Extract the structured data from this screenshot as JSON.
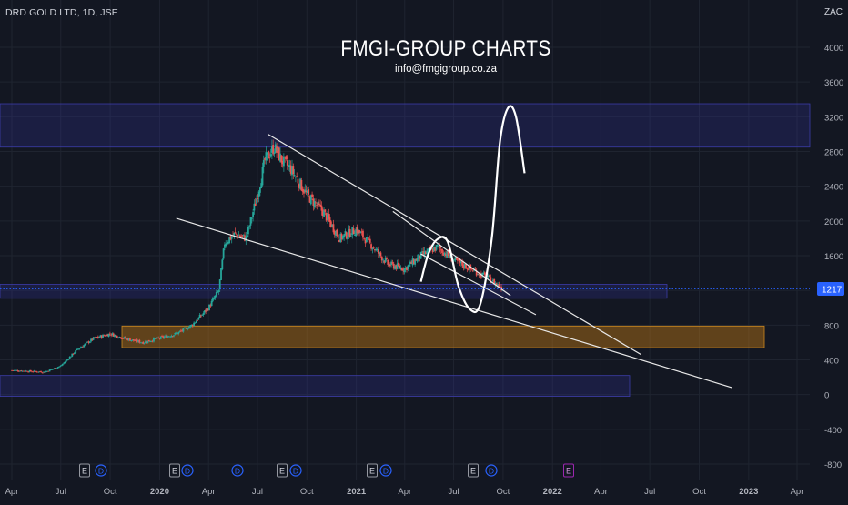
{
  "header": {
    "symbol": "DRD GOLD LTD, 1D, JSE",
    "currency": "ZAC"
  },
  "watermark": {
    "title": "FMGI-GROUP CHARTS",
    "subtitle": "info@fmgigroup.co.za"
  },
  "colors": {
    "background": "#131722",
    "candle_up": "#26a69a",
    "candle_down": "#ef5350",
    "trendline": "#e8e8e8",
    "zone_blue": "#3a3a9a",
    "zone_orange": "#c07a18",
    "price_tag": "#2962ff",
    "grid": "#1f2430"
  },
  "chart_data": {
    "type": "candlestick",
    "x_ticks": [
      "Apr",
      "Jul",
      "Oct",
      "2020",
      "Apr",
      "Jul",
      "Oct",
      "2021",
      "Apr",
      "Jul",
      "Oct",
      "2022",
      "Apr",
      "Jul",
      "Oct",
      "2023",
      "Apr"
    ],
    "x_range": [
      "2019-04",
      "2023-04"
    ],
    "y_ticks": [
      4000,
      3600,
      3200,
      2800,
      2400,
      2000,
      1600,
      1200,
      800,
      400,
      0,
      -400,
      -800
    ],
    "y_range": [
      -1000,
      4500
    ],
    "last_price": "1217",
    "events": [
      "E",
      "D",
      "E",
      "D",
      "D",
      "E",
      "D",
      "E",
      "D",
      "E",
      "D",
      "E"
    ],
    "close_series": [
      [
        "2019-04-01",
        280
      ],
      [
        "2019-05-01",
        270
      ],
      [
        "2019-06-01",
        260
      ],
      [
        "2019-07-01",
        330
      ],
      [
        "2019-08-01",
        520
      ],
      [
        "2019-09-01",
        650
      ],
      [
        "2019-10-01",
        700
      ],
      [
        "2019-11-01",
        640
      ],
      [
        "2019-12-01",
        600
      ],
      [
        "2020-01-01",
        650
      ],
      [
        "2020-02-01",
        700
      ],
      [
        "2020-03-01",
        800
      ],
      [
        "2020-04-01",
        1000
      ],
      [
        "2020-04-20",
        1200
      ],
      [
        "2020-05-01",
        1750
      ],
      [
        "2020-05-20",
        1850
      ],
      [
        "2020-06-10",
        1800
      ],
      [
        "2020-07-01",
        2300
      ],
      [
        "2020-07-15",
        2700
      ],
      [
        "2020-08-01",
        2850
      ],
      [
        "2020-08-15",
        2700
      ],
      [
        "2020-09-01",
        2600
      ],
      [
        "2020-10-01",
        2300
      ],
      [
        "2020-11-01",
        2100
      ],
      [
        "2020-12-01",
        1800
      ],
      [
        "2021-01-01",
        1900
      ],
      [
        "2021-02-01",
        1700
      ],
      [
        "2021-03-01",
        1500
      ],
      [
        "2021-04-01",
        1450
      ],
      [
        "2021-05-01",
        1600
      ],
      [
        "2021-06-01",
        1700
      ],
      [
        "2021-07-01",
        1550
      ],
      [
        "2021-08-01",
        1450
      ],
      [
        "2021-09-01",
        1350
      ],
      [
        "2021-10-01",
        1217
      ]
    ],
    "zones": [
      {
        "name": "resistance-zone",
        "from": 2850,
        "to": 3350,
        "color": "blue"
      },
      {
        "name": "current-zone",
        "from": 1110,
        "to": 1270,
        "color": "blue"
      },
      {
        "name": "support-zone-orange",
        "from": 540,
        "to": 790,
        "color": "orange"
      },
      {
        "name": "lower-zone",
        "from": -20,
        "to": 220,
        "color": "blue"
      }
    ],
    "trendlines": [
      {
        "name": "upper-trendline",
        "from": [
          "2020-07-20",
          3000
        ],
        "to": [
          "2022-06-15",
          460
        ]
      },
      {
        "name": "lower-trendline",
        "from": [
          "2020-02-01",
          2030
        ],
        "to": [
          "2022-12-01",
          80
        ]
      },
      {
        "name": "wedge-upper",
        "from": [
          "2021-03-10",
          2110
        ],
        "to": [
          "2021-10-15",
          1140
        ]
      },
      {
        "name": "wedge-lower",
        "from": [
          "2021-05-01",
          1620
        ],
        "to": [
          "2021-12-01",
          920
        ]
      }
    ],
    "projection_points": [
      [
        "2021-05-01",
        1300
      ],
      [
        "2021-05-15",
        1620
      ],
      [
        "2021-06-01",
        1790
      ],
      [
        "2021-06-20",
        1760
      ],
      [
        "2021-07-10",
        1250
      ],
      [
        "2021-08-01",
        980
      ],
      [
        "2021-08-20",
        1050
      ],
      [
        "2021-09-10",
        1800
      ],
      [
        "2021-09-25",
        2900
      ],
      [
        "2021-10-10",
        3300
      ],
      [
        "2021-10-25",
        3200
      ],
      [
        "2021-11-10",
        2550
      ]
    ]
  }
}
